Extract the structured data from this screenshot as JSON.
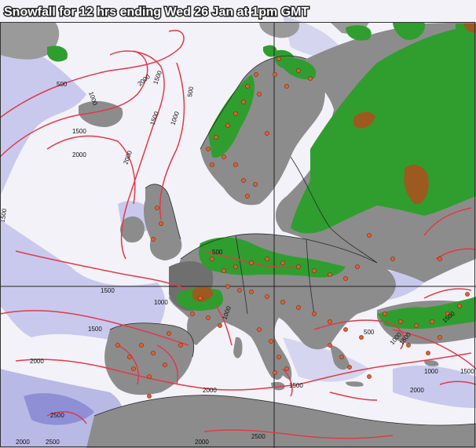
{
  "map": {
    "title": "Snowfall for 12 hrs ending Wed 26 Jan at 1pm GMT",
    "colors": {
      "sea": "#f2f2f8",
      "land": "#8c8c8c",
      "snow_light": "#b9b9e6",
      "snow_medium": "#7c7ccf",
      "rain_green": "#2f9e2f",
      "heavy_brown": "#9c5a20",
      "contour": "#e03a4a",
      "city_dot": "#e06030"
    },
    "contour_labels": [
      "500",
      "1000",
      "1500",
      "2000",
      "2000",
      "1500",
      "1000",
      "500",
      "1500",
      "2000",
      "1500",
      "500",
      "1000",
      "1500",
      "1500",
      "1000",
      "2000",
      "2000",
      "1500",
      "2000",
      "2500",
      "2000",
      "2500",
      "2500",
      "2000",
      "500",
      "1000",
      "1500",
      "1500",
      "1000",
      "1500"
    ]
  }
}
